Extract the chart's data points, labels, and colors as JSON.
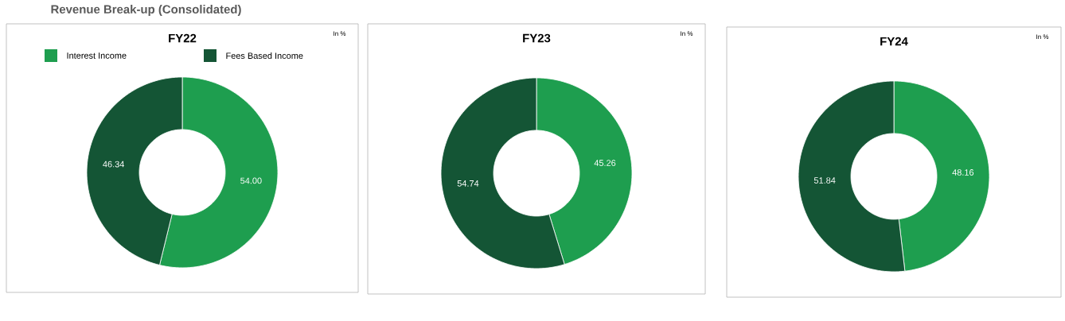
{
  "chart_data": [
    {
      "type": "donut",
      "title": "FY22",
      "annotations": [
        "Revenue Break-up (Consolidated)",
        "In %"
      ],
      "legend": "top",
      "categories": [
        "Interest Income",
        "Fees Based Income"
      ],
      "values": [
        54.0,
        46.34
      ],
      "value_labels": [
        "54.00",
        "46.34"
      ],
      "colors": [
        "#1e9e4f",
        "#145535"
      ]
    },
    {
      "type": "donut",
      "title": "FY23",
      "annotations": [
        "In %"
      ],
      "categories": [
        null,
        null
      ],
      "values": [
        45.26,
        54.74
      ],
      "value_labels": [
        "45.26",
        "54.74"
      ],
      "colors": [
        "#1e9e4f",
        "#145535"
      ]
    },
    {
      "type": "donut",
      "title": "FY24",
      "annotations": [
        "In %"
      ],
      "categories": [
        null,
        null
      ],
      "values": [
        48.16,
        51.84
      ],
      "value_labels": [
        "48.16",
        "51.84"
      ],
      "colors": [
        "#1e9e4f",
        "#145535"
      ]
    }
  ]
}
